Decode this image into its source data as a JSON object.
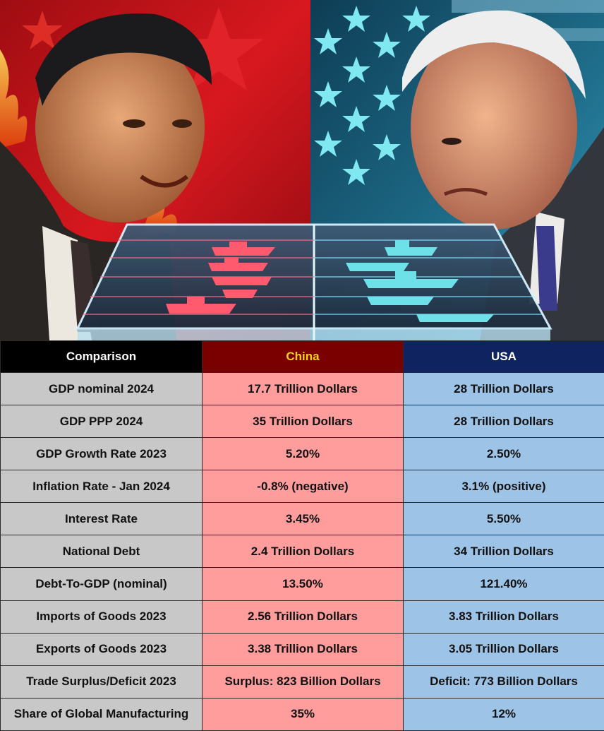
{
  "image": {
    "description_icons": [
      "china-flag-icon",
      "usa-flag-icon",
      "warship-icon"
    ],
    "colors": {
      "china_red": "#c8141e",
      "usa_blue": "#1d6a8c",
      "star_cyan": "#7fe8f0",
      "red_ship": "#ff5a6e",
      "cyan_ship": "#6ee0e8"
    }
  },
  "table": {
    "headers": [
      "Comparison",
      "China",
      "USA"
    ],
    "rows": [
      [
        "GDP nominal 2024",
        "17.7 Trillion Dollars",
        "28 Trillion Dollars"
      ],
      [
        "GDP PPP 2024",
        "35 Trillion Dollars",
        "28 Trillion Dollars"
      ],
      [
        "GDP Growth Rate 2023",
        "5.20%",
        "2.50%"
      ],
      [
        "Inflation Rate - Jan 2024",
        "-0.8% (negative)",
        "3.1% (positive)"
      ],
      [
        "Interest Rate",
        "3.45%",
        "5.50%"
      ],
      [
        "National Debt",
        "2.4 Trillion Dollars",
        "34 Trillion Dollars"
      ],
      [
        "Debt-To-GDP (nominal)",
        "13.50%",
        "121.40%"
      ],
      [
        "Imports of Goods 2023",
        "2.56 Trillion Dollars",
        "3.83 Trillion Dollars"
      ],
      [
        "Exports of Goods 2023",
        "3.38 Trillion Dollars",
        "3.05 Trillion Dollars"
      ],
      [
        "Trade Surplus/Deficit 2023",
        "Surplus: 823 Billion Dollars",
        "Deficit: 773 Billion Dollars"
      ],
      [
        "Share of Global Manufacturing",
        "35%",
        "12%"
      ]
    ],
    "colors": {
      "header_label_bg": "#000000",
      "header_china_bg": "#7a0000",
      "header_china_text": "#ffd21a",
      "header_usa_bg": "#0f2360",
      "label_bg": "#c8c8c8",
      "china_bg": "#ff9c9c",
      "usa_bg": "#9dc3e6"
    }
  }
}
